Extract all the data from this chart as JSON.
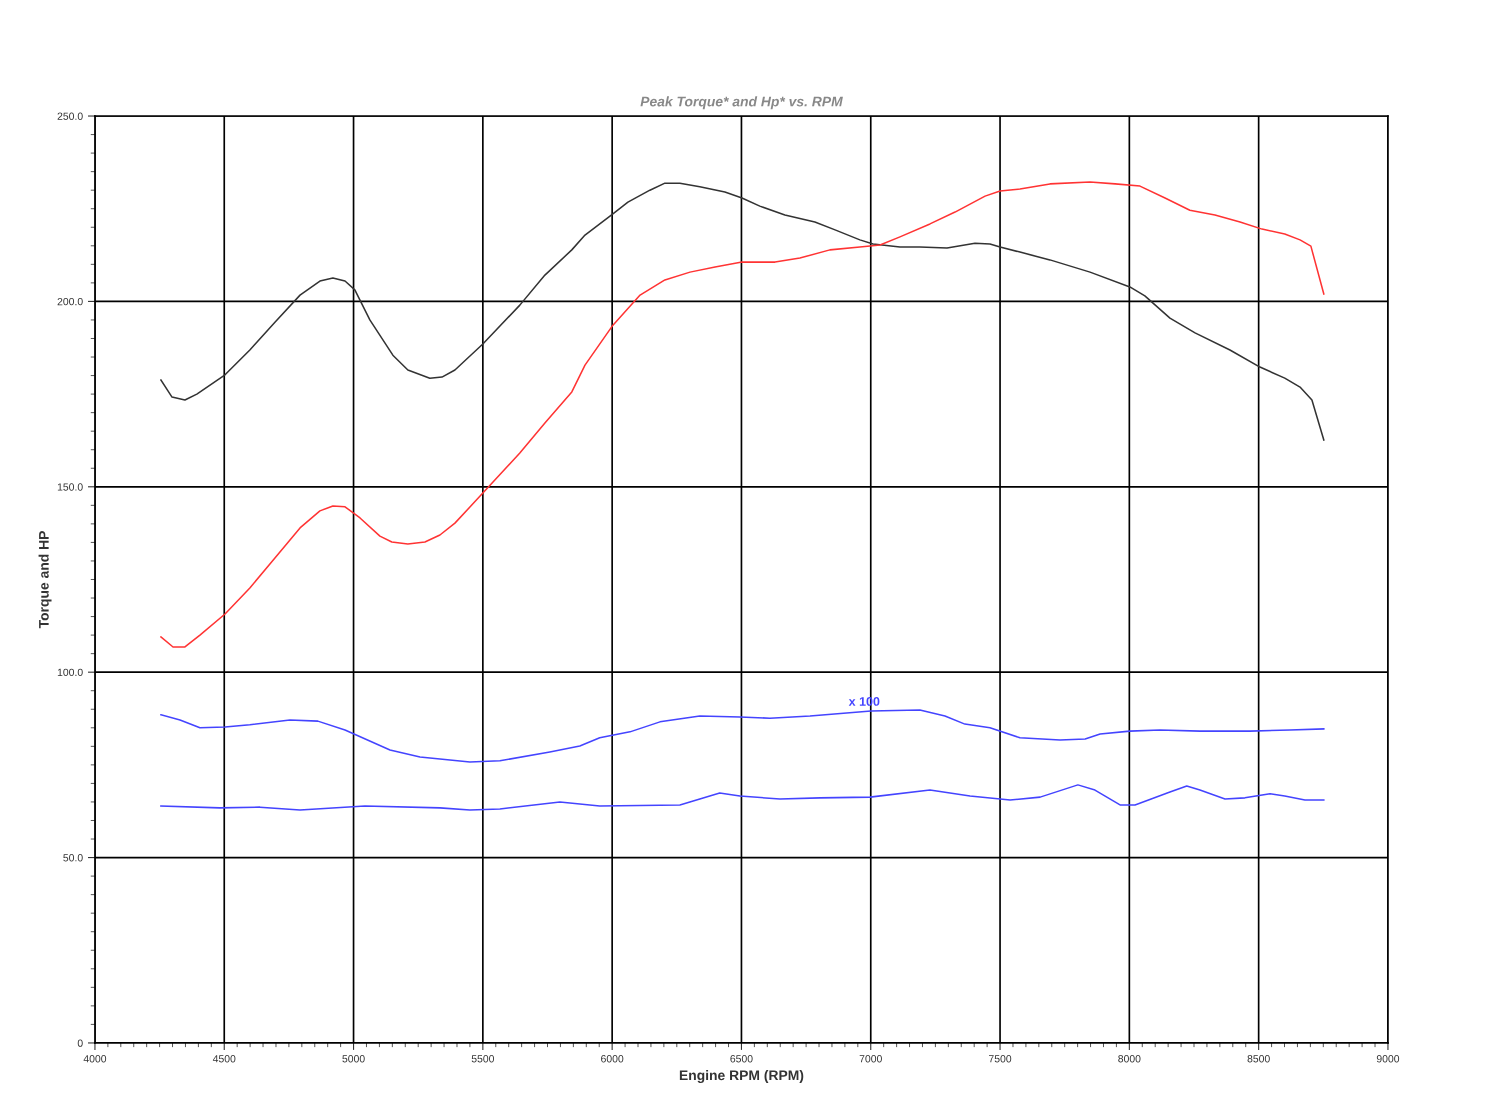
{
  "chart_data": {
    "type": "line",
    "title": "Peak Torque* and Hp* vs. RPM",
    "xlabel": "Engine RPM (RPM)",
    "ylabel": "Torque and HP",
    "xlim": [
      4000,
      9000
    ],
    "xticks": [
      4000,
      4500,
      5000,
      5500,
      6000,
      6500,
      7000,
      7500,
      8000,
      8500,
      9000
    ],
    "ylim": [
      0,
      250
    ],
    "yticks": [
      {
        "value": 0,
        "label": "0"
      },
      {
        "value": 50,
        "label": "50.0"
      },
      {
        "value": 100,
        "label": "100.0"
      },
      {
        "value": 150,
        "label": "150.0"
      },
      {
        "value": 200,
        "label": "200.0"
      },
      {
        "value": 250,
        "label": "250.0"
      }
    ],
    "grid": true,
    "marker": "none",
    "line_style": "solid",
    "annotations": [
      "x 100"
    ],
    "series": [
      {
        "color": "#333333",
        "x": [
          4255,
          4298,
          4348,
          4394,
          4503,
          4599,
          4696,
          4793,
          4870,
          4920,
          4967,
          5005,
          5063,
          5152,
          5210,
          5295,
          5342,
          5392,
          5500,
          5643,
          5740,
          5844,
          5895,
          6003,
          6061,
          6146,
          6204,
          6262,
          6339,
          6436,
          6502,
          6571,
          6668,
          6784,
          6862,
          6958,
          7009,
          7113,
          7190,
          7295,
          7403,
          7461,
          7500,
          7577,
          7693,
          7848,
          8002,
          8060,
          8157,
          8254,
          8389,
          8505,
          8601,
          8660,
          8706,
          8752
        ],
        "values": [
          178.8,
          174.2,
          173.4,
          175.0,
          180.2,
          186.9,
          194.4,
          201.7,
          205.5,
          206.3,
          205.5,
          203.1,
          195.0,
          185.5,
          181.5,
          179.3,
          179.6,
          181.5,
          188.5,
          199.0,
          207.1,
          213.9,
          217.9,
          223.6,
          226.8,
          230.0,
          231.9,
          231.9,
          230.9,
          229.5,
          227.9,
          225.7,
          223.3,
          221.4,
          219.3,
          216.6,
          215.5,
          214.7,
          214.7,
          214.4,
          215.7,
          215.5,
          214.7,
          213.3,
          211.2,
          207.9,
          203.9,
          201.5,
          195.5,
          191.5,
          186.9,
          182.3,
          179.3,
          176.9,
          173.4,
          162.6
        ]
      },
      {
        "color": "#ff3333",
        "x": [
          4255,
          4302,
          4348,
          4406,
          4503,
          4599,
          4696,
          4793,
          4870,
          4920,
          4967,
          5025,
          5102,
          5148,
          5210,
          5276,
          5334,
          5392,
          5500,
          5643,
          5740,
          5844,
          5895,
          6003,
          6108,
          6204,
          6301,
          6398,
          6502,
          6630,
          6726,
          6842,
          6958,
          7036,
          7113,
          7229,
          7326,
          7442,
          7500,
          7577,
          7693,
          7848,
          7945,
          8041,
          8138,
          8234,
          8331,
          8428,
          8513,
          8601,
          8660,
          8702,
          8752
        ],
        "values": [
          109.5,
          106.8,
          106.8,
          110.0,
          115.7,
          122.7,
          130.8,
          138.9,
          143.5,
          144.8,
          144.6,
          141.6,
          136.7,
          135.1,
          134.6,
          135.1,
          137.0,
          140.2,
          148.3,
          159.1,
          167.2,
          175.6,
          182.8,
          193.6,
          201.7,
          205.8,
          207.9,
          209.3,
          210.6,
          210.6,
          211.7,
          213.9,
          214.7,
          215.2,
          217.4,
          220.9,
          224.1,
          228.4,
          229.8,
          230.3,
          231.7,
          232.2,
          231.7,
          231.1,
          227.9,
          224.6,
          223.3,
          221.4,
          219.5,
          218.2,
          216.6,
          214.9,
          202.0
        ]
      },
      {
        "color": "#4444ff",
        "x": [
          4255,
          4329,
          4406,
          4503,
          4599,
          4754,
          4862,
          4967,
          5141,
          5257,
          5450,
          5566,
          5759,
          5875,
          5952,
          6069,
          6185,
          6339,
          6494,
          6610,
          6765,
          7001,
          7190,
          7287,
          7364,
          7461,
          7577,
          7732,
          7829,
          7887,
          8002,
          8118,
          8273,
          8466,
          8621,
          8752
        ],
        "values": [
          88.5,
          87.1,
          85.0,
          85.2,
          85.8,
          87.1,
          86.8,
          84.4,
          79.0,
          77.1,
          75.8,
          76.1,
          78.5,
          80.1,
          82.3,
          83.9,
          86.6,
          88.2,
          87.9,
          87.6,
          88.2,
          89.5,
          89.8,
          88.2,
          86.0,
          85.0,
          82.3,
          81.7,
          82.0,
          83.3,
          84.1,
          84.4,
          84.1,
          84.1,
          84.4,
          84.7
        ]
      },
      {
        "color": "#4444ff",
        "x": [
          4255,
          4483,
          4638,
          4793,
          5044,
          5334,
          5450,
          5566,
          5798,
          5952,
          6262,
          6416,
          6494,
          6649,
          6804,
          6997,
          7229,
          7384,
          7539,
          7655,
          7801,
          7867,
          7964,
          8022,
          8157,
          8222,
          8273,
          8370,
          8447,
          8544,
          8601,
          8679,
          8752
        ],
        "values": [
          63.9,
          63.4,
          63.6,
          62.8,
          63.9,
          63.4,
          62.8,
          63.1,
          65.0,
          63.9,
          64.2,
          67.4,
          66.6,
          65.8,
          66.1,
          66.3,
          68.2,
          66.6,
          65.5,
          66.3,
          69.6,
          68.2,
          64.2,
          64.2,
          67.7,
          69.3,
          68.2,
          65.8,
          66.1,
          67.2,
          66.6,
          65.5,
          65.5
        ]
      }
    ]
  }
}
